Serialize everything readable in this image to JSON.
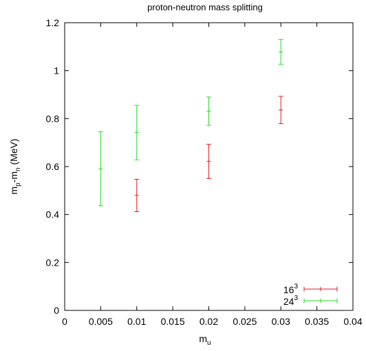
{
  "chart_data": {
    "type": "scatter",
    "title": "proton-neutron mass splitting",
    "xlabel": {
      "base": "m",
      "sub": "u"
    },
    "ylabel": {
      "base1": "m",
      "sub1": "p",
      "mid": "-m",
      "sub2": "n",
      "tail": " (MeV)"
    },
    "xlim": [
      0,
      0.04
    ],
    "ylim": [
      0,
      1.2
    ],
    "xticks": [
      0,
      0.005,
      0.01,
      0.015,
      0.02,
      0.025,
      0.03,
      0.035,
      0.04
    ],
    "xtick_labels": [
      "0",
      "0.005",
      "0.01",
      "0.015",
      "0.02",
      "0.025",
      "0.03",
      "0.035",
      "0.04"
    ],
    "yticks": [
      0,
      0.2,
      0.4,
      0.6,
      0.8,
      1.0,
      1.2
    ],
    "ytick_labels": [
      "0",
      "0.2",
      "0.4",
      "0.6",
      "0.8",
      "1",
      "1.2"
    ],
    "grid": false,
    "legend_position": "bottom-right",
    "series": [
      {
        "name": "16",
        "name_sup": "3",
        "color": "#e41a1c",
        "points": [
          {
            "x": 0.01,
            "y": 0.48,
            "ylo": 0.412,
            "yhi": 0.547
          },
          {
            "x": 0.02,
            "y": 0.622,
            "ylo": 0.55,
            "yhi": 0.693
          },
          {
            "x": 0.03,
            "y": 0.836,
            "ylo": 0.779,
            "yhi": 0.893
          }
        ]
      },
      {
        "name": "24",
        "name_sup": "3",
        "color": "#22dd22",
        "points": [
          {
            "x": 0.005,
            "y": 0.59,
            "ylo": 0.437,
            "yhi": 0.745
          },
          {
            "x": 0.01,
            "y": 0.742,
            "ylo": 0.628,
            "yhi": 0.855
          },
          {
            "x": 0.02,
            "y": 0.831,
            "ylo": 0.772,
            "yhi": 0.89
          },
          {
            "x": 0.03,
            "y": 1.078,
            "ylo": 1.027,
            "yhi": 1.13
          }
        ]
      }
    ]
  }
}
